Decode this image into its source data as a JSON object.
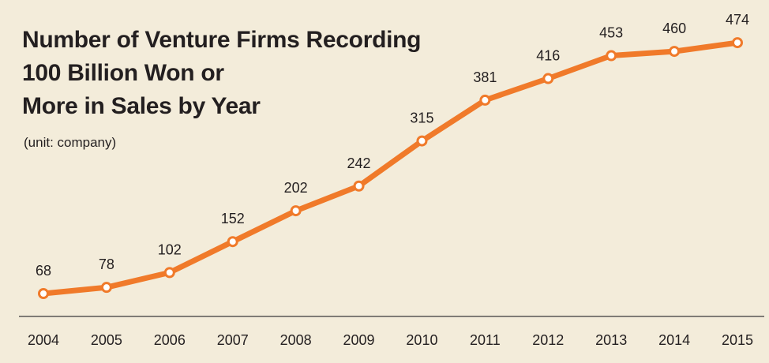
{
  "chart_data": {
    "type": "line",
    "title": [
      "Number of Venture Firms Recording",
      "100 Billion Won or",
      "More in Sales by Year"
    ],
    "unit_note": "(unit: company)",
    "x": [
      "2004",
      "2005",
      "2006",
      "2007",
      "2008",
      "2009",
      "2010",
      "2011",
      "2012",
      "2013",
      "2014",
      "2015"
    ],
    "series": [
      {
        "values": [
          68,
          78,
          102,
          152,
          202,
          242,
          315,
          381,
          416,
          453,
          460,
          474
        ]
      }
    ],
    "ylim": [
      0,
      500
    ],
    "grid": false,
    "legend": "none",
    "colors": {
      "line": "#f07a2a",
      "marker_fill": "#ffffff",
      "background": "#f3ecda",
      "text": "#231f20",
      "axis": "#3a3a3a"
    }
  }
}
